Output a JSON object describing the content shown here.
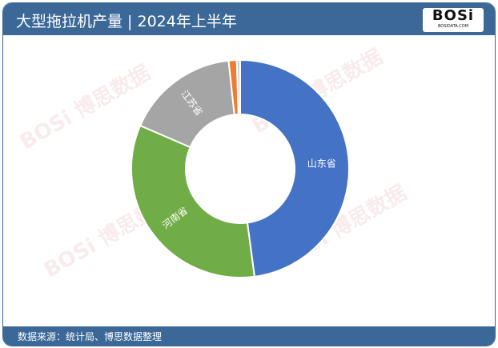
{
  "header": {
    "title": "大型拖拉机产量 | 2024年上半年",
    "logo_text": "BOSi",
    "logo_sub": "BOSIDATA.COM"
  },
  "footer": {
    "source": "数据来源：统计局、博思数据整理"
  },
  "colors": {
    "header": "#3b6897",
    "shandong": "#4472c4",
    "henan": "#70ad47",
    "jiangsu": "#a5a5a5",
    "other1": "#ed7d31",
    "other2": "#c9d6ea"
  },
  "chart_data": {
    "type": "pie",
    "donut": true,
    "unit": "%",
    "slices": [
      {
        "label": "山东省",
        "value": 47.9,
        "color": "#4472c4"
      },
      {
        "label": "河南省",
        "value": 33.6,
        "color": "#70ad47"
      },
      {
        "label": "江苏省",
        "value": 16.8,
        "color": "#a5a5a5"
      },
      {
        "label": "",
        "value": 1.2,
        "color": "#ed7d31"
      },
      {
        "label": "",
        "value": 0.5,
        "color": "#c9d6ea"
      }
    ]
  }
}
